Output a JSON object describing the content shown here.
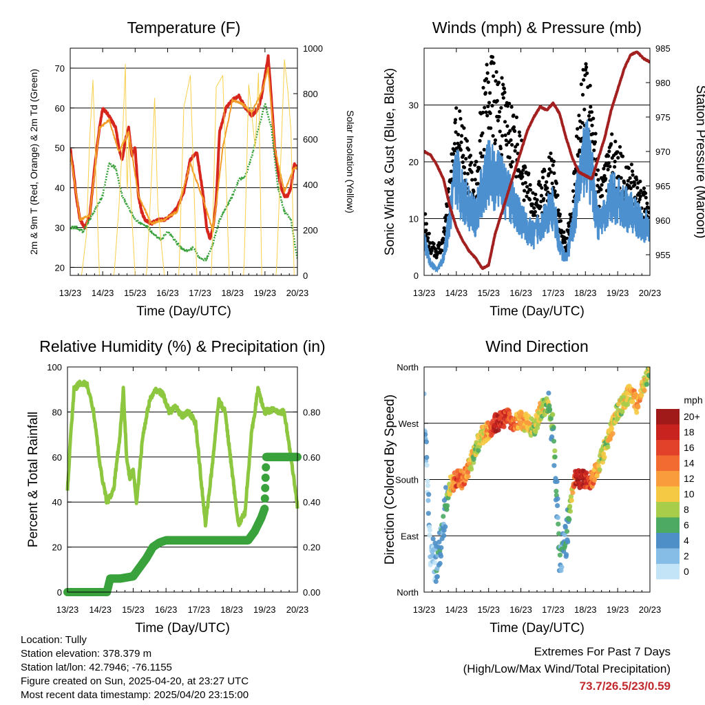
{
  "chart_data": [
    {
      "type": "line",
      "title": "Temperature (F)",
      "xlabel": "Time (Day/UTC)",
      "ylabel": "2m & 9m T (Red, Orange) & 2m Td (Green)",
      "ylabel_right": "Solar Insolation (Yellow)",
      "xticks": [
        "13/23",
        "14/23",
        "15/23",
        "16/23",
        "17/23",
        "18/23",
        "19/23",
        "20/23"
      ],
      "xlim": [
        0,
        7
      ],
      "ylim": [
        18,
        75
      ],
      "yticks": [
        20,
        30,
        40,
        50,
        60,
        70
      ],
      "ylim_right": [
        0,
        1000
      ],
      "yticks_right": [
        0,
        200,
        400,
        600,
        800,
        1000
      ],
      "grid": true,
      "series": [
        {
          "name": "2m T",
          "color": "#d7261e",
          "axis": "left",
          "x": [
            0,
            0.1,
            0.2,
            0.3,
            0.45,
            0.6,
            0.75,
            0.9,
            1.0,
            1.2,
            1.4,
            1.5,
            1.6,
            1.7,
            1.8,
            1.9,
            2.0,
            2.1,
            2.2,
            2.3,
            2.5,
            2.7,
            2.9,
            3.1,
            3.3,
            3.5,
            3.7,
            3.9,
            4.1,
            4.2,
            4.3,
            4.4,
            4.5,
            4.6,
            4.8,
            5.0,
            5.2,
            5.4,
            5.6,
            5.8,
            5.9,
            6.0,
            6.1,
            6.2,
            6.3,
            6.4,
            6.5,
            6.6,
            6.7,
            6.8,
            6.9,
            7.0
          ],
          "y": [
            50,
            44,
            37,
            32,
            30,
            33,
            45,
            55,
            60,
            58,
            55,
            50,
            47,
            52,
            55,
            48,
            50,
            38,
            34,
            32,
            31,
            32,
            32,
            33,
            35,
            39,
            47,
            49,
            38,
            30,
            27,
            30,
            37,
            54,
            60,
            62,
            63,
            60,
            58,
            60,
            63,
            68,
            73,
            62,
            50,
            44,
            40,
            38,
            38,
            40,
            46,
            45
          ]
        },
        {
          "name": "9m T",
          "color": "#f29b26",
          "axis": "left",
          "x": [
            0,
            0.3,
            0.6,
            0.9,
            1.2,
            1.5,
            1.8,
            2.1,
            2.5,
            2.9,
            3.3,
            3.7,
            4.1,
            4.4,
            4.7,
            5.0,
            5.3,
            5.6,
            5.9,
            6.1,
            6.3,
            6.6,
            6.9,
            7.0
          ],
          "y": [
            49,
            32,
            33,
            55,
            57,
            49,
            54,
            38,
            31,
            32,
            34,
            46,
            37,
            29,
            50,
            62,
            61,
            59,
            64,
            70,
            50,
            39,
            45,
            45
          ]
        },
        {
          "name": "2m Td",
          "color": "#3aa23c",
          "axis": "left",
          "x": [
            0,
            0.2,
            0.4,
            0.6,
            0.8,
            1.0,
            1.2,
            1.4,
            1.6,
            1.8,
            2.0,
            2.2,
            2.4,
            2.6,
            2.8,
            3.0,
            3.2,
            3.4,
            3.6,
            3.8,
            4.0,
            4.2,
            4.4,
            4.6,
            4.8,
            5.0,
            5.2,
            5.4,
            5.6,
            5.8,
            6.0,
            6.2,
            6.4,
            6.6,
            6.8,
            7.0
          ],
          "y": [
            30,
            30,
            29,
            32,
            35,
            38,
            46,
            45,
            38,
            35,
            32,
            31,
            30,
            28,
            27,
            29,
            27,
            25,
            24,
            25,
            22,
            22,
            26,
            32,
            35,
            38,
            42,
            43,
            48,
            55,
            61,
            55,
            40,
            34,
            32,
            22
          ]
        },
        {
          "name": "Solar Insolation",
          "color": "#f7d04b",
          "axis": "right",
          "x": [
            0,
            0.35,
            0.5,
            0.6,
            0.7,
            0.8,
            0.9,
            1.35,
            1.5,
            1.6,
            1.7,
            1.75,
            1.8,
            1.9,
            2.0,
            2.1,
            2.35,
            2.5,
            2.6,
            2.7,
            2.9,
            3.35,
            3.5,
            3.7,
            3.9,
            4.35,
            4.5,
            4.7,
            4.9,
            5.35,
            5.5,
            5.7,
            5.8,
            5.9,
            6.35,
            6.5,
            6.6,
            6.7,
            6.8,
            6.9,
            7.0
          ],
          "y": [
            0,
            0,
            180,
            600,
            860,
            420,
            0,
            0,
            300,
            560,
            930,
            320,
            620,
            250,
            0,
            0,
            0,
            420,
            780,
            300,
            0,
            0,
            740,
            880,
            0,
            0,
            830,
            880,
            0,
            0,
            840,
            560,
            890,
            0,
            0,
            560,
            950,
            820,
            640,
            0,
            0
          ]
        }
      ]
    },
    {
      "type": "scatter",
      "title": "Winds (mph) & Pressure (mb)",
      "xlabel": "Time (Day/UTC)",
      "ylabel": "Sonic Wind & Gust (Blue, Black)",
      "ylabel_right": "Station Pressure (Maroon)",
      "xticks": [
        "13/23",
        "14/23",
        "15/23",
        "16/23",
        "17/23",
        "18/23",
        "19/23",
        "20/23"
      ],
      "xlim": [
        0,
        7
      ],
      "ylim": [
        0,
        40
      ],
      "yticks": [
        0,
        10,
        20,
        30
      ],
      "ylim_right": [
        952,
        985
      ],
      "yticks_right": [
        955,
        960,
        965,
        970,
        975,
        980,
        985
      ],
      "grid": true,
      "series": [
        {
          "name": "Sonic Wind",
          "color": "#4d90d0",
          "axis": "left",
          "x": [
            0,
            0.2,
            0.4,
            0.6,
            0.8,
            1.0,
            1.2,
            1.4,
            1.6,
            1.8,
            2.0,
            2.2,
            2.4,
            2.6,
            2.8,
            3.0,
            3.2,
            3.4,
            3.6,
            3.8,
            4.0,
            4.2,
            4.4,
            4.6,
            4.8,
            5.0,
            5.2,
            5.4,
            5.6,
            5.8,
            6.0,
            6.2,
            6.4,
            6.6,
            6.8,
            7.0
          ],
          "y": [
            6,
            2,
            1,
            3,
            10,
            18,
            14,
            12,
            10,
            15,
            18,
            17,
            16,
            14,
            12,
            10,
            8,
            7,
            9,
            10,
            12,
            5,
            3,
            8,
            16,
            22,
            17,
            9,
            10,
            14,
            13,
            12,
            11,
            10,
            9,
            8
          ]
        },
        {
          "name": "Gust",
          "color": "#000000",
          "axis": "left",
          "x": [
            0,
            0.2,
            0.4,
            0.6,
            0.8,
            1.0,
            1.2,
            1.4,
            1.6,
            1.8,
            2.0,
            2.2,
            2.4,
            2.6,
            2.8,
            3.0,
            3.2,
            3.4,
            3.6,
            3.8,
            4.0,
            4.2,
            4.4,
            4.6,
            4.8,
            5.0,
            5.2,
            5.4,
            5.6,
            5.8,
            6.0,
            6.2,
            6.4,
            6.6,
            6.8,
            7.0
          ],
          "y": [
            10,
            5,
            4,
            6,
            15,
            25,
            22,
            18,
            16,
            26,
            33,
            30,
            28,
            26,
            24,
            20,
            15,
            12,
            14,
            16,
            18,
            9,
            5,
            12,
            24,
            33,
            28,
            15,
            16,
            20,
            19,
            17,
            16,
            15,
            13,
            11
          ]
        },
        {
          "name": "Station Pressure",
          "color": "#a32020",
          "axis": "right",
          "x": [
            0,
            0.2,
            0.4,
            0.6,
            0.8,
            1.0,
            1.2,
            1.4,
            1.6,
            1.8,
            2.0,
            2.2,
            2.4,
            2.6,
            2.8,
            3.0,
            3.2,
            3.4,
            3.6,
            3.8,
            4.0,
            4.2,
            4.4,
            4.6,
            4.8,
            5.0,
            5.2,
            5.4,
            5.6,
            5.8,
            6.0,
            6.2,
            6.4,
            6.6,
            6.8,
            7.0
          ],
          "y": [
            970,
            969.5,
            968,
            966,
            962,
            959,
            957,
            955.5,
            954.5,
            953,
            953.5,
            958,
            961,
            964,
            967,
            970,
            973,
            975,
            976.5,
            976,
            977,
            975.5,
            972,
            969,
            967,
            966.5,
            966,
            969,
            972,
            976,
            979,
            982,
            984,
            984.5,
            983.5,
            983
          ]
        }
      ]
    },
    {
      "type": "line",
      "title": "Relative Humidity (%) & Precipitation (in)",
      "xlabel": "Time (Day/UTC)",
      "ylabel": "Percent & Total Rainfall",
      "xticks": [
        "13/23",
        "14/23",
        "15/23",
        "16/23",
        "17/23",
        "18/23",
        "19/23",
        "20/23"
      ],
      "xlim": [
        0,
        7
      ],
      "ylim": [
        0,
        100
      ],
      "yticks": [
        0,
        20,
        40,
        60,
        80,
        100
      ],
      "ylim_right": [
        0,
        1.0
      ],
      "yticks_right": [
        "0.00",
        "0.20",
        "0.40",
        "0.60",
        "0.80"
      ],
      "grid": true,
      "series": [
        {
          "name": "Relative Humidity",
          "color": "#8dc63f",
          "axis": "left",
          "x": [
            0,
            0.1,
            0.2,
            0.4,
            0.6,
            0.8,
            1.0,
            1.2,
            1.4,
            1.6,
            1.7,
            1.8,
            1.9,
            2.0,
            2.1,
            2.3,
            2.5,
            2.7,
            2.9,
            3.1,
            3.3,
            3.5,
            3.7,
            3.9,
            4.0,
            4.2,
            4.4,
            4.6,
            4.8,
            5.0,
            5.2,
            5.4,
            5.6,
            5.8,
            6.0,
            6.2,
            6.4,
            6.6,
            6.8,
            7.0
          ],
          "y": [
            45,
            70,
            90,
            93,
            92,
            80,
            55,
            40,
            45,
            70,
            90,
            60,
            50,
            55,
            40,
            70,
            85,
            90,
            88,
            80,
            82,
            78,
            80,
            75,
            60,
            30,
            55,
            85,
            80,
            55,
            30,
            35,
            70,
            90,
            80,
            81,
            80,
            80,
            60,
            38
          ]
        },
        {
          "name": "Total Precipitation",
          "color": "#3aa23c",
          "axis": "right",
          "x": [
            0,
            1.2,
            1.3,
            1.6,
            2.0,
            2.4,
            2.6,
            2.8,
            3.0,
            3.5,
            4.0,
            4.5,
            5.0,
            5.5,
            5.7,
            5.9,
            6.0,
            6.05,
            6.2,
            6.5,
            7.0
          ],
          "y": [
            0.0,
            0.0,
            0.06,
            0.06,
            0.07,
            0.15,
            0.2,
            0.22,
            0.23,
            0.23,
            0.23,
            0.23,
            0.23,
            0.23,
            0.27,
            0.33,
            0.37,
            0.6,
            0.6,
            0.6,
            0.6
          ]
        }
      ]
    },
    {
      "type": "scatter",
      "title": "Wind Direction",
      "xlabel": "Time (Day/UTC)",
      "ylabel": "Direction (Colored By Speed)",
      "xticks": [
        "13/23",
        "14/23",
        "15/23",
        "16/23",
        "17/23",
        "18/23",
        "19/23",
        "20/23"
      ],
      "xlim": [
        0,
        7
      ],
      "ylim": [
        0,
        360
      ],
      "yticks": [
        "North",
        "East",
        "South",
        "West",
        "North"
      ],
      "grid": true,
      "colorbar": {
        "title": "mph",
        "labels": [
          "20+",
          "18",
          "16",
          "14",
          "12",
          "10",
          "8",
          "6",
          "4",
          "2",
          "0"
        ],
        "colors": [
          "#a11a1a",
          "#c8231f",
          "#e3422a",
          "#f26b30",
          "#f99c3c",
          "#f6c945",
          "#a7cd4a",
          "#4daa63",
          "#4d8fc6",
          "#86bde6",
          "#c3e4f6"
        ]
      },
      "series": [
        {
          "name": "Direction",
          "x": [
            0,
            0.2,
            0.4,
            0.5,
            0.7,
            0.8,
            1.0,
            1.2,
            1.4,
            1.6,
            1.8,
            2.0,
            2.2,
            2.4,
            2.6,
            2.8,
            3.0,
            3.2,
            3.4,
            3.6,
            3.8,
            4.0,
            4.2,
            4.4,
            4.5,
            4.6,
            4.7,
            4.8,
            5.0,
            5.2,
            5.4,
            5.6,
            5.8,
            6.0,
            6.2,
            6.4,
            6.6,
            6.8,
            7.0
          ],
          "y": [
            290,
            60,
            40,
            80,
            140,
            170,
            180,
            180,
            200,
            230,
            250,
            260,
            270,
            275,
            280,
            270,
            275,
            270,
            260,
            290,
            300,
            270,
            60,
            80,
            120,
            170,
            185,
            180,
            180,
            180,
            200,
            230,
            260,
            290,
            305,
            320,
            300,
            330,
            360
          ],
          "speed": [
            2,
            1,
            3,
            4,
            6,
            8,
            16,
            14,
            10,
            8,
            10,
            12,
            18,
            18,
            16,
            14,
            12,
            10,
            8,
            10,
            8,
            6,
            4,
            4,
            6,
            10,
            18,
            20,
            18,
            14,
            10,
            8,
            10,
            8,
            10,
            10,
            12,
            10,
            8
          ]
        }
      ]
    }
  ],
  "colorbar": {
    "title": "mph",
    "labels": [
      "20+",
      "18",
      "16",
      "14",
      "12",
      "10",
      "8",
      "6",
      "4",
      "2",
      "0"
    ]
  },
  "station_info": {
    "location": "Location: Tully",
    "elevation": "Station elevation: 378.379 m",
    "latlon": "Station lat/lon: 42.7946; -76.1155",
    "created": "Figure created on Sun, 2025-04-20, at 23:27 UTC",
    "recent": "Most recent data timestamp: 2025/04/20 23:15:00"
  },
  "extremes": {
    "heading": "Extremes For Past 7 Days",
    "subheading": "(High/Low/Max Wind/Total Precipitation)",
    "values": "73.7/26.5/23/0.59",
    "color": "#c0282d"
  }
}
